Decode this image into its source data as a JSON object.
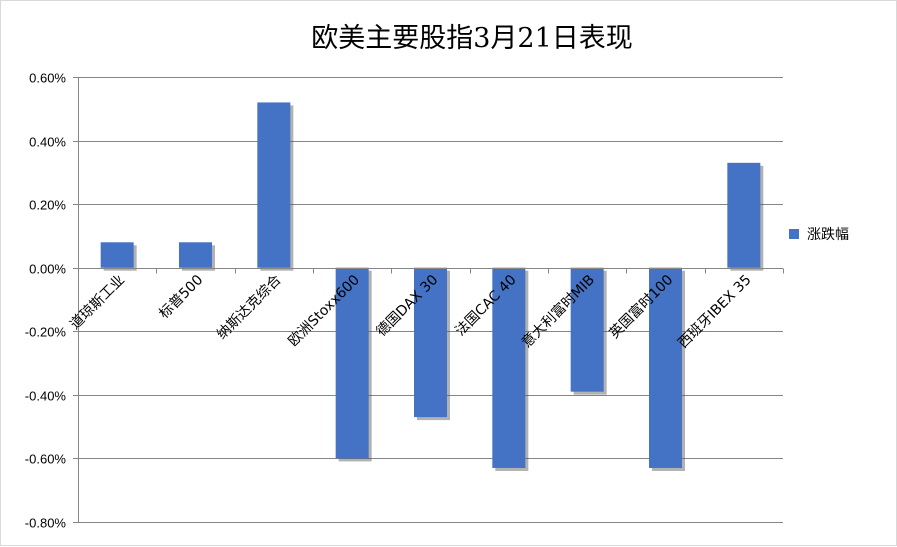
{
  "chart_data": {
    "type": "bar",
    "title": "欧美主要股指3月21日表现",
    "categories": [
      "道琼斯工业",
      "标普500",
      "纳斯达克综合",
      "欧洲Stoxx600",
      "德国DAX 30",
      "法国CAC 40",
      "意大利富时MIB",
      "英国富时100",
      "西班牙IBEX 35"
    ],
    "series": [
      {
        "name": "涨跌幅",
        "values": [
          0.08,
          0.08,
          0.52,
          -0.6,
          -0.47,
          -0.63,
          -0.39,
          -0.63,
          0.33
        ],
        "color": "#4472c4"
      }
    ],
    "ylim": [
      -0.8,
      0.6
    ],
    "yticks": [
      0.6,
      0.4,
      0.2,
      0.0,
      -0.2,
      -0.4,
      -0.6,
      -0.8
    ],
    "ytick_labels": [
      "0.60%",
      "0.40%",
      "0.20%",
      "0.00%",
      "-0.20%",
      "-0.40%",
      "-0.60%",
      "-0.80%"
    ],
    "grid": true,
    "legend": "right"
  }
}
